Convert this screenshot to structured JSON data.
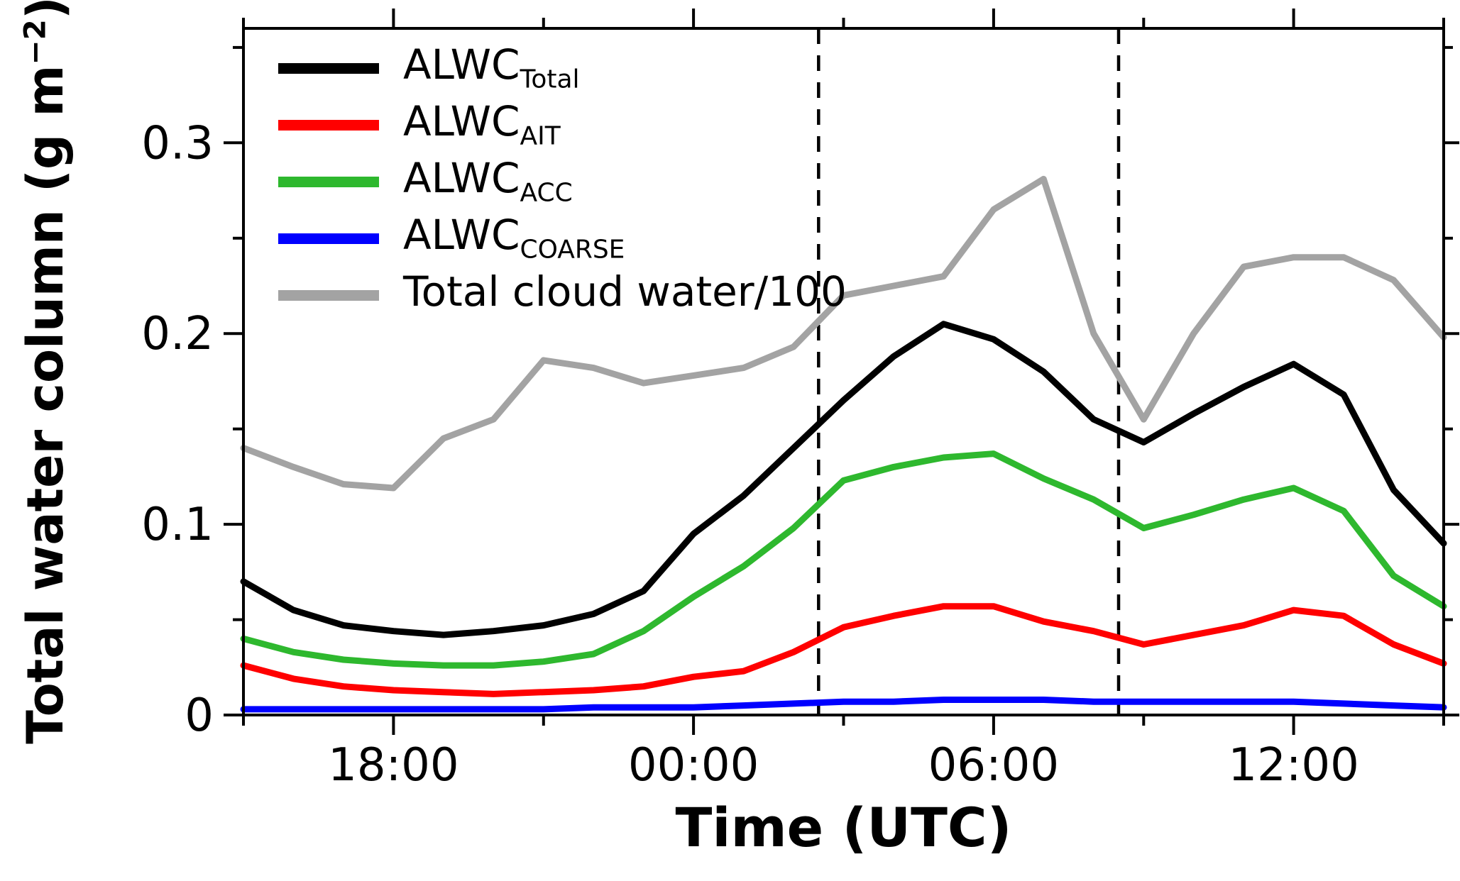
{
  "chart_data": {
    "type": "line",
    "title": "",
    "xlabel": "Time (UTC)",
    "ylabel": "Total water column (g m−2)",
    "ylabel_parts": {
      "main": "Total water column (g m",
      "sup": "−2",
      "close": ")"
    },
    "x_unit": "time of day (UTC), hourly samples",
    "x_times": [
      "15:00",
      "16:00",
      "17:00",
      "18:00",
      "19:00",
      "20:00",
      "21:00",
      "22:00",
      "23:00",
      "00:00",
      "01:00",
      "02:00",
      "03:00",
      "04:00",
      "05:00",
      "06:00",
      "07:00",
      "08:00",
      "09:00",
      "10:00",
      "11:00",
      "12:00",
      "13:00",
      "14:00",
      "15:00"
    ],
    "xlim_hours": [
      0,
      24
    ],
    "ylim": [
      0,
      0.36
    ],
    "grid": false,
    "legend_position": "top-left",
    "x_ticks_major": [
      {
        "t": 3,
        "label": "18:00"
      },
      {
        "t": 9,
        "label": "00:00"
      },
      {
        "t": 15,
        "label": "06:00"
      },
      {
        "t": 21,
        "label": "12:00"
      }
    ],
    "x_ticks_minor": [
      0,
      6,
      12,
      18,
      24
    ],
    "y_ticks_major": [
      {
        "v": 0,
        "label": "0"
      },
      {
        "v": 0.1,
        "label": "0.1"
      },
      {
        "v": 0.2,
        "label": "0.2"
      },
      {
        "v": 0.3,
        "label": "0.3"
      }
    ],
    "y_ticks_minor": [
      0.05,
      0.15,
      0.25,
      0.35
    ],
    "dashed_vlines_t": [
      11.5,
      17.5
    ],
    "dashed_vlines_times": [
      "02:30",
      "08:30"
    ],
    "series": [
      {
        "name": "ALWC_Total",
        "label_main": "ALWC",
        "label_sub": "Total",
        "color": "#000000",
        "values": [
          0.07,
          0.055,
          0.047,
          0.044,
          0.042,
          0.044,
          0.047,
          0.053,
          0.065,
          0.095,
          0.115,
          0.14,
          0.165,
          0.188,
          0.205,
          0.197,
          0.18,
          0.155,
          0.143,
          0.158,
          0.172,
          0.184,
          0.168,
          0.118,
          0.09
        ]
      },
      {
        "name": "ALWC_AIT",
        "label_main": "ALWC",
        "label_sub": "AIT",
        "color": "#ff0000",
        "values": [
          0.026,
          0.019,
          0.015,
          0.013,
          0.012,
          0.011,
          0.012,
          0.013,
          0.015,
          0.02,
          0.023,
          0.033,
          0.046,
          0.052,
          0.057,
          0.057,
          0.049,
          0.044,
          0.037,
          0.042,
          0.047,
          0.055,
          0.052,
          0.037,
          0.027
        ]
      },
      {
        "name": "ALWC_ACC",
        "label_main": "ALWC",
        "label_sub": "ACC",
        "color": "#2eb82e",
        "values": [
          0.04,
          0.033,
          0.029,
          0.027,
          0.026,
          0.026,
          0.028,
          0.032,
          0.044,
          0.062,
          0.078,
          0.098,
          0.123,
          0.13,
          0.135,
          0.137,
          0.124,
          0.113,
          0.098,
          0.105,
          0.113,
          0.119,
          0.107,
          0.073,
          0.057
        ]
      },
      {
        "name": "ALWC_COARSE",
        "label_main": "ALWC",
        "label_sub": "COARSE",
        "color": "#0000ff",
        "values": [
          0.003,
          0.003,
          0.003,
          0.003,
          0.003,
          0.003,
          0.003,
          0.004,
          0.004,
          0.004,
          0.005,
          0.006,
          0.007,
          0.007,
          0.008,
          0.008,
          0.008,
          0.007,
          0.007,
          0.007,
          0.007,
          0.007,
          0.006,
          0.005,
          0.004
        ]
      },
      {
        "name": "Total_cloud_water_over_100",
        "label_main": "Total cloud water/100",
        "label_sub": "",
        "color": "#a3a3a3",
        "values": [
          0.14,
          0.13,
          0.121,
          0.119,
          0.145,
          0.155,
          0.186,
          0.182,
          0.174,
          0.178,
          0.182,
          0.193,
          0.22,
          0.225,
          0.23,
          0.265,
          0.281,
          0.2,
          0.155,
          0.2,
          0.235,
          0.24,
          0.24,
          0.228,
          0.198
        ]
      }
    ]
  }
}
